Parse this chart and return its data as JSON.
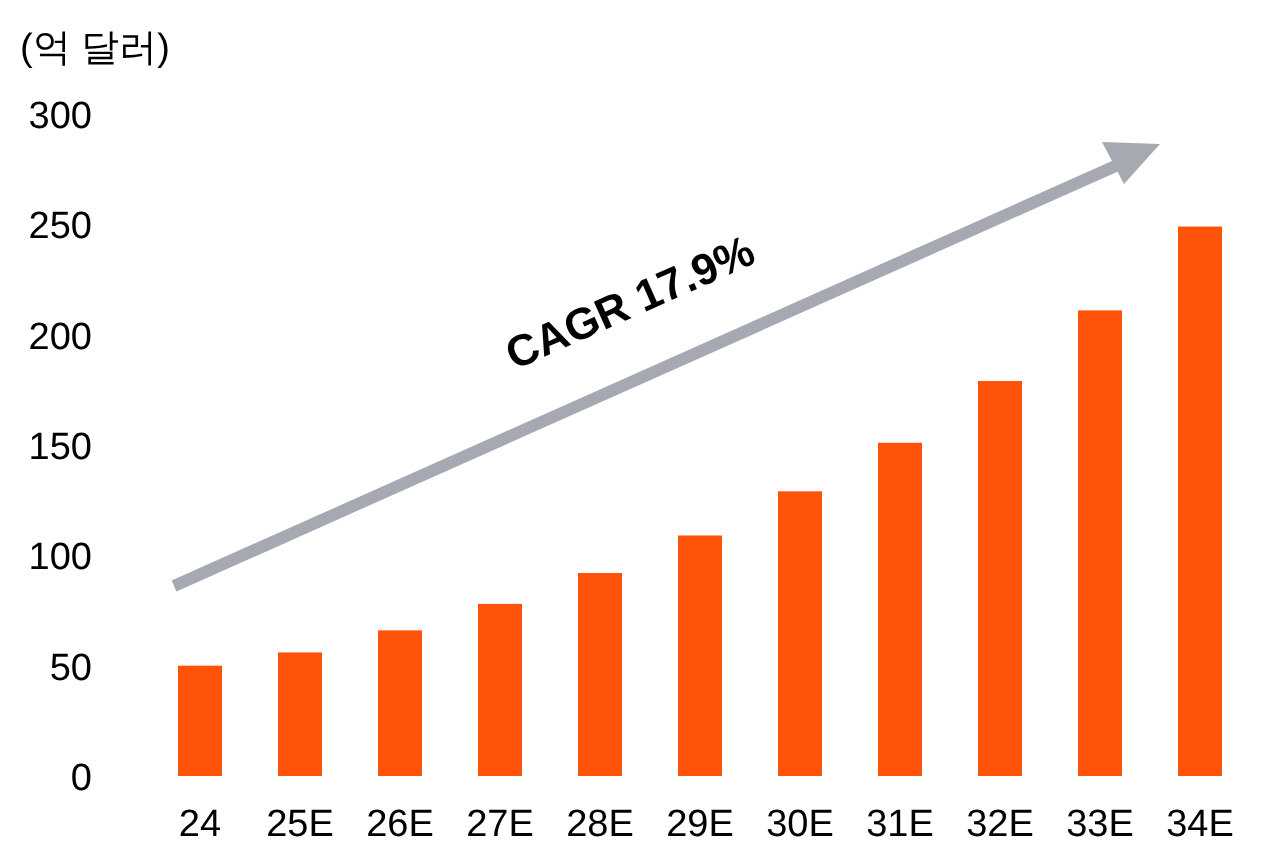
{
  "chart_data": {
    "type": "bar",
    "ylabel": "(억 달러)",
    "categories": [
      "24",
      "25E",
      "26E",
      "27E",
      "28E",
      "29E",
      "30E",
      "31E",
      "32E",
      "33E",
      "34E"
    ],
    "values": [
      50,
      56,
      66,
      78,
      92,
      109,
      129,
      151,
      179,
      211,
      249
    ],
    "color": "#ff5309",
    "ylim": [
      0,
      300
    ],
    "yticks": [
      0,
      50,
      100,
      150,
      200,
      250,
      300
    ],
    "annotations": [
      "CAGR 17.9%"
    ]
  }
}
